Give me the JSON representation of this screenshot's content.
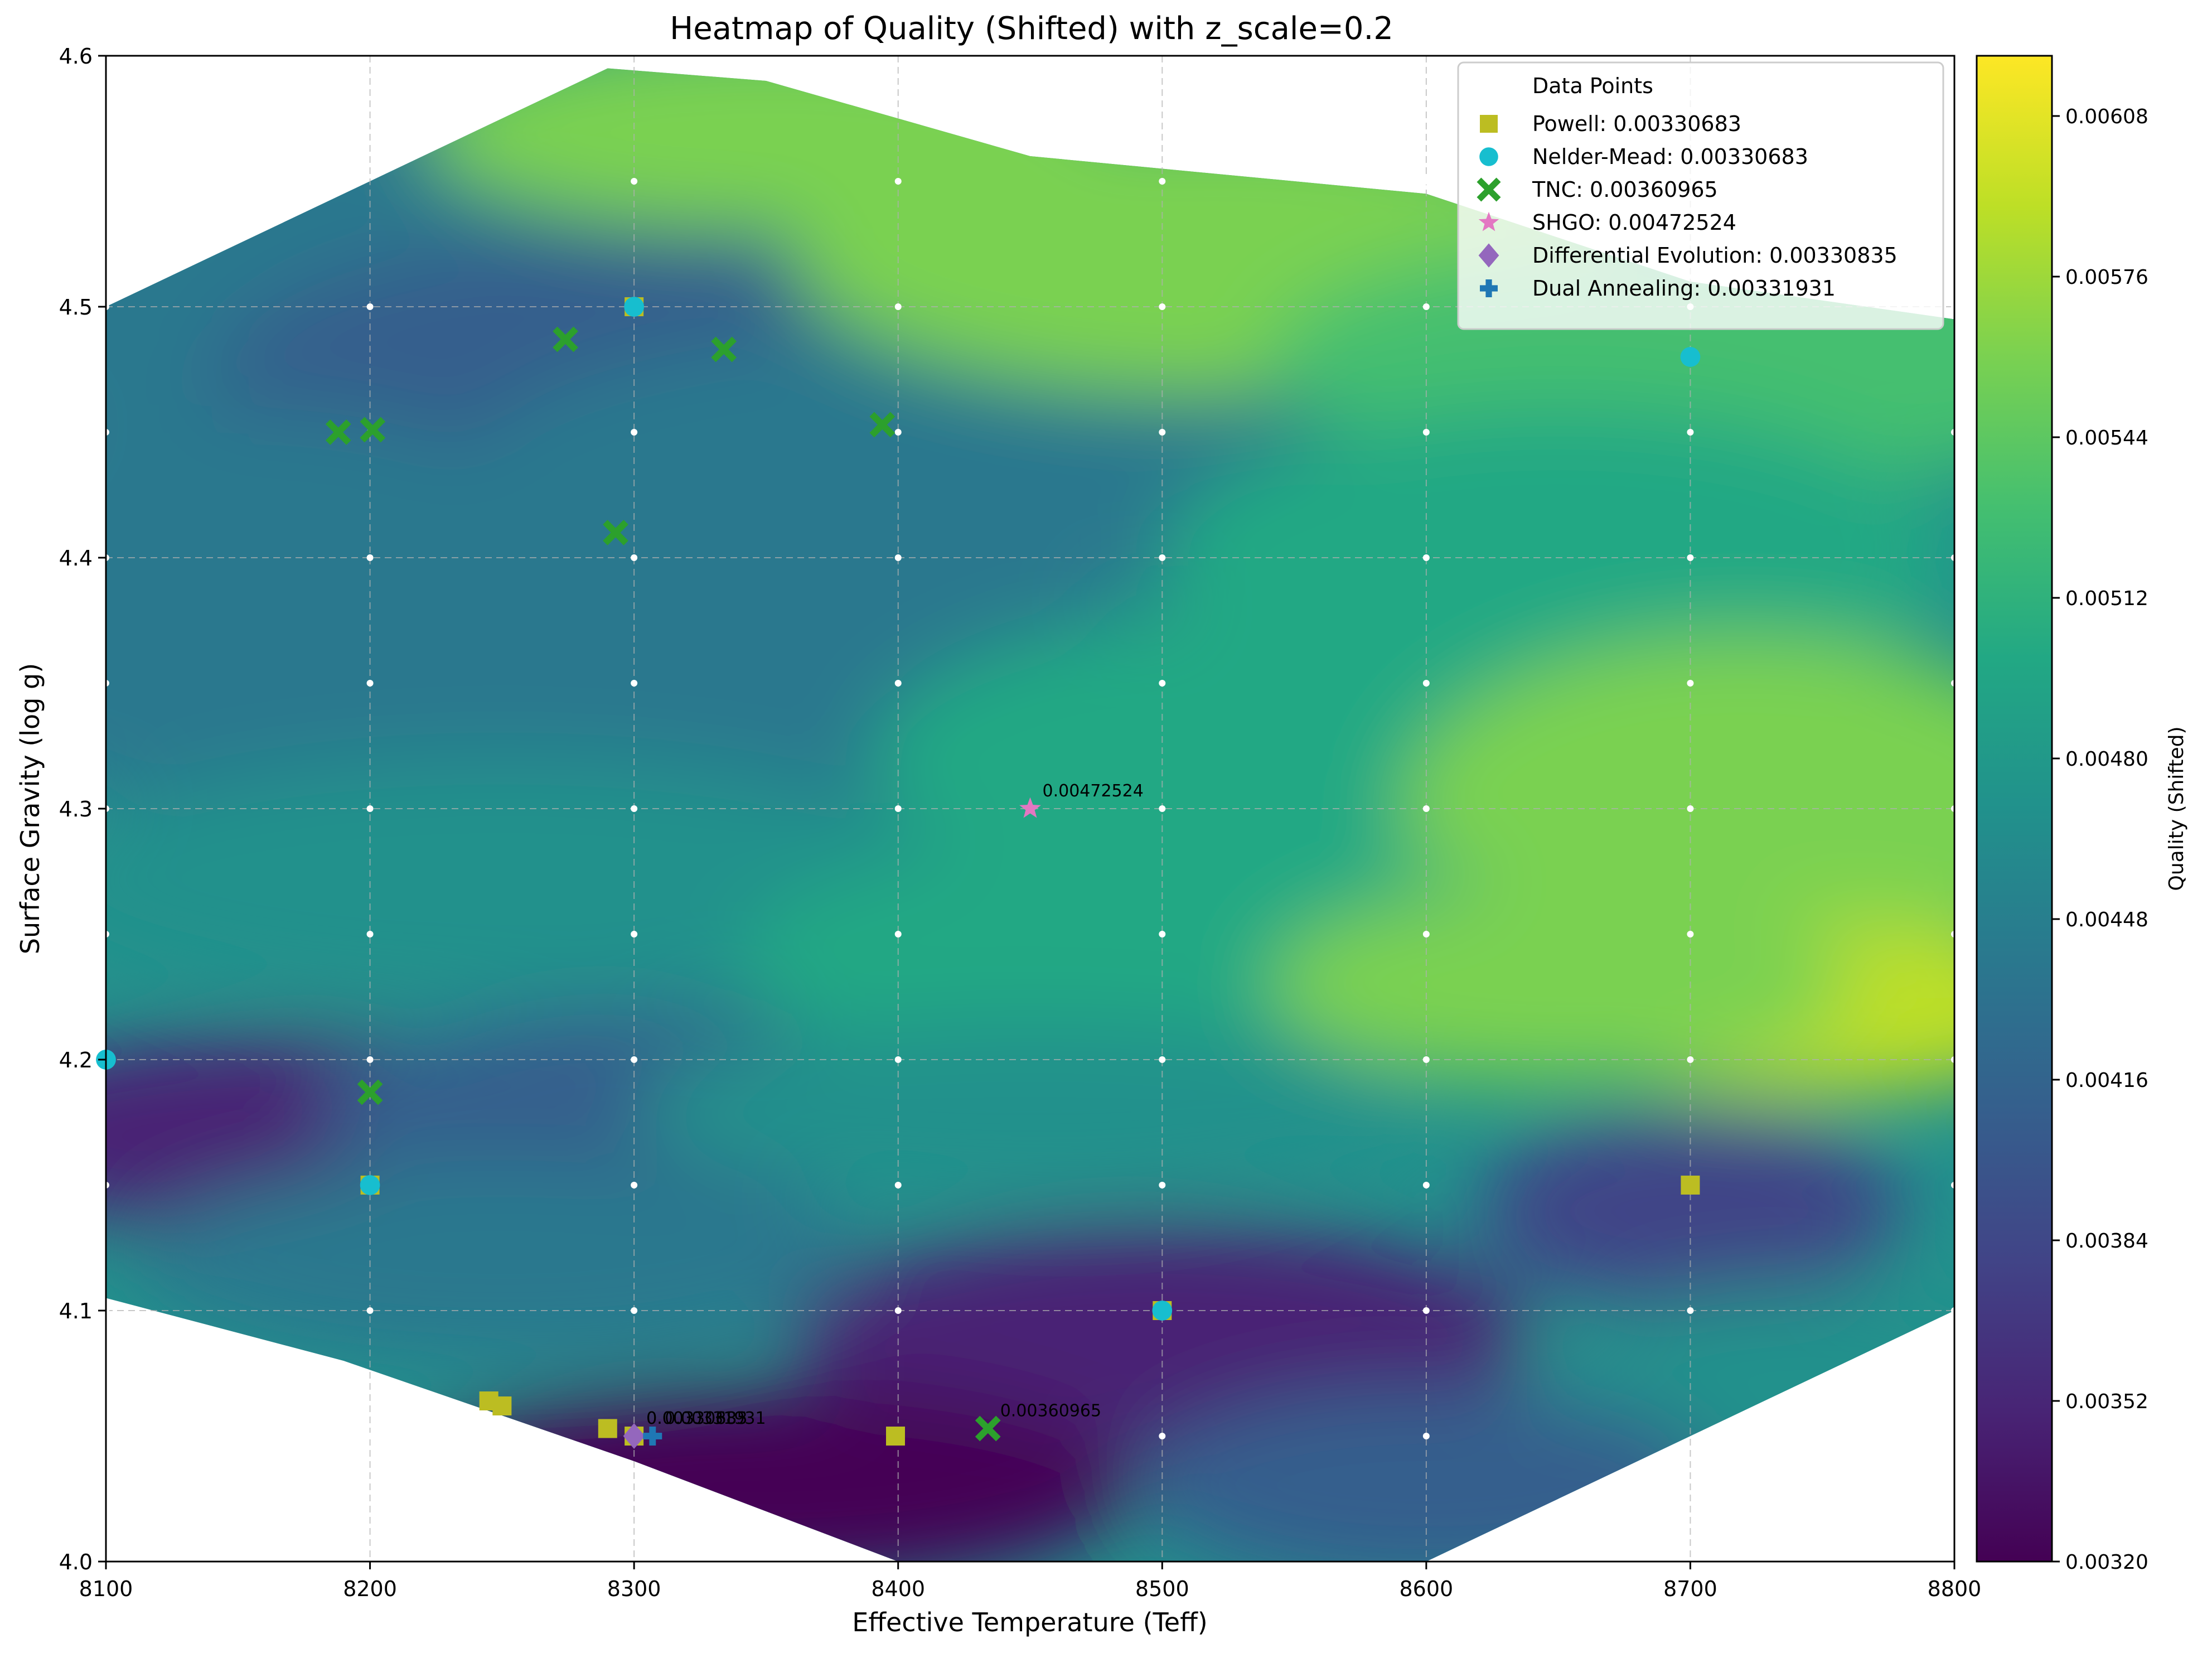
{
  "chart_data": {
    "type": "heatmap",
    "title": "Heatmap of Quality (Shifted) with z_scale=0.2",
    "xlabel": "Effective Temperature (Teff)",
    "ylabel": "Surface Gravity (log g)",
    "xlim": [
      8100,
      8800
    ],
    "ylim": [
      4.0,
      4.6
    ],
    "x_ticks": [
      "8100",
      "8200",
      "8300",
      "8400",
      "8500",
      "8600",
      "8700",
      "8800"
    ],
    "y_ticks": [
      "4.0",
      "4.1",
      "4.2",
      "4.3",
      "4.4",
      "4.5",
      "4.6"
    ],
    "grid": true,
    "colormap": "viridis",
    "colorbar": {
      "label": "Quality (Shifted)",
      "range": [
        0.0032,
        0.0062
      ],
      "ticks": [
        "0.00320",
        "0.00352",
        "0.00384",
        "0.00416",
        "0.00448",
        "0.00480",
        "0.00512",
        "0.00544",
        "0.00576",
        "0.00608"
      ]
    },
    "legend": {
      "title": "Data Points",
      "placement": "upper right",
      "entries": [
        {
          "label": "Powell: 0.00330683",
          "marker": "square",
          "color": "#bcbd22"
        },
        {
          "label": "Nelder-Mead: 0.00330683",
          "marker": "circle",
          "color": "#17becf"
        },
        {
          "label": "TNC: 0.00360965",
          "marker": "x",
          "color": "#2ca02c"
        },
        {
          "label": "SHGO: 0.00472524",
          "marker": "star",
          "color": "#e377c2"
        },
        {
          "label": "Differential Evolution: 0.00330835",
          "marker": "diamond",
          "color": "#9467bd"
        },
        {
          "label": "Dual Annealing: 0.00331931",
          "marker": "plus",
          "color": "#1f77b4"
        }
      ]
    },
    "sample_grid": {
      "teff": [
        8100,
        8200,
        8300,
        8400,
        8500,
        8600,
        8700,
        8800
      ],
      "logg": [
        4.05,
        4.1,
        4.15,
        4.2,
        4.25,
        4.3,
        4.35,
        4.4,
        4.45,
        4.5,
        4.55
      ]
    },
    "series": [
      {
        "name": "Powell: 0.00330683",
        "points": [
          [
            8300,
            4.5
          ],
          [
            8200,
            4.15
          ],
          [
            8500,
            4.1
          ],
          [
            8700,
            4.15
          ],
          [
            8245,
            4.064
          ],
          [
            8250,
            4.062
          ],
          [
            8290,
            4.053
          ],
          [
            8300,
            4.05
          ],
          [
            8399,
            4.05
          ]
        ]
      },
      {
        "name": "Nelder-Mead: 0.00330683",
        "points": [
          [
            8300,
            4.5
          ],
          [
            8200,
            4.15
          ],
          [
            8500,
            4.1
          ],
          [
            8700,
            4.48
          ],
          [
            8100,
            4.2
          ]
        ]
      },
      {
        "name": "TNC: 0.00360965",
        "points": [
          [
            8188,
            4.45
          ],
          [
            8201,
            4.451
          ],
          [
            8274,
            4.487
          ],
          [
            8334,
            4.483
          ],
          [
            8394,
            4.453
          ],
          [
            8293,
            4.41
          ],
          [
            8200,
            4.187
          ],
          [
            8434,
            4.053
          ]
        ]
      },
      {
        "name": "SHGO: 0.00472524",
        "points": [
          [
            8450,
            4.3
          ]
        ]
      },
      {
        "name": "Differential Evolution: 0.00330835",
        "points": [
          [
            8300,
            4.05
          ]
        ]
      },
      {
        "name": "Dual Annealing: 0.00331931",
        "points": [
          [
            8307,
            4.05
          ]
        ]
      }
    ],
    "annotations": [
      {
        "text": "0.00472524",
        "x": 8450,
        "y": 4.3
      },
      {
        "text": "0.00360965",
        "x": 8434,
        "y": 4.053
      },
      {
        "text": "0.00330683",
        "x": 8300,
        "y": 4.05
      },
      {
        "text": "0.00330835",
        "x": 8300,
        "y": 4.05
      },
      {
        "text": "0.00331931",
        "x": 8307,
        "y": 4.05
      }
    ]
  }
}
